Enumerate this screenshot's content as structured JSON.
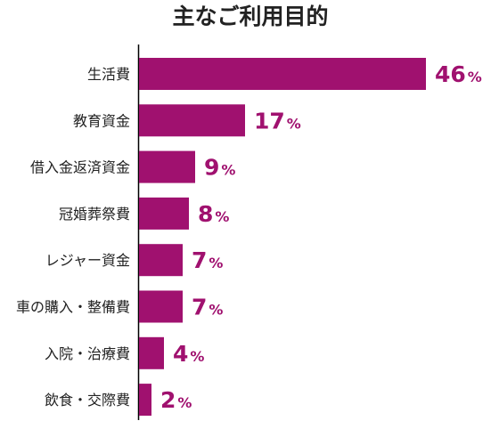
{
  "chart_data": {
    "type": "bar",
    "orientation": "horizontal",
    "title": "主なご利用目的",
    "categories": [
      "生活費",
      "教育資金",
      "借入金返済資金",
      "冠婚葬祭費",
      "レジャー資金",
      "車の購入・整備費",
      "入院・治療費",
      "飲食・交際費"
    ],
    "values": [
      46,
      17,
      9,
      8,
      7,
      7,
      4,
      2
    ],
    "unit": "%",
    "xlabel": "",
    "ylabel": "",
    "xlim": [
      0,
      50
    ],
    "grid": false,
    "legend": "none",
    "bar_color": "#a0116f",
    "label_color": "#a0116f"
  }
}
